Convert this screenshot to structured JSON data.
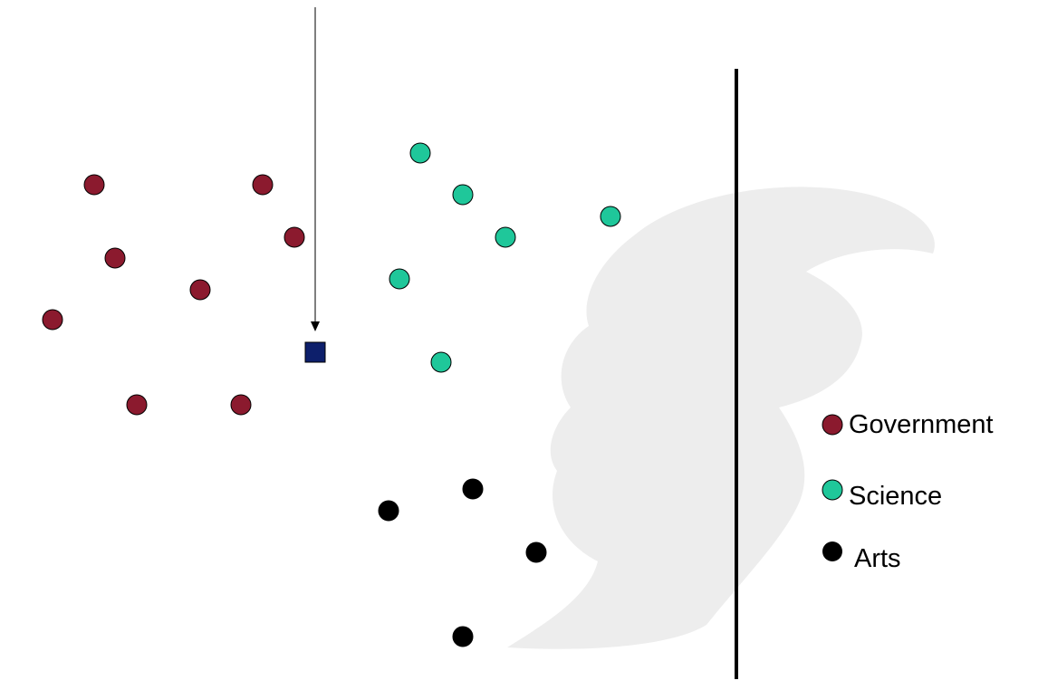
{
  "chart_data": {
    "type": "scatter",
    "colors": {
      "government": "#8B1A2E",
      "science": "#1FC79A",
      "arts": "#000000",
      "query": "#0D1F6B",
      "divider": "#000000",
      "arrow": "#555555",
      "watermark": "#EDEDED"
    },
    "series": [
      {
        "name": "Government",
        "color": "#8B1A2E",
        "points": [
          [
            104,
            204
          ],
          [
            290,
            204
          ],
          [
            325,
            262
          ],
          [
            127,
            285
          ],
          [
            221,
            320
          ],
          [
            58,
            353
          ],
          [
            151,
            447
          ],
          [
            266,
            447
          ]
        ]
      },
      {
        "name": "Science",
        "color": "#1FC79A",
        "points": [
          [
            464,
            169
          ],
          [
            511,
            215
          ],
          [
            674,
            239
          ],
          [
            558,
            262
          ],
          [
            441,
            308
          ],
          [
            487,
            400
          ]
        ]
      },
      {
        "name": "Arts",
        "color": "#000000",
        "points": [
          [
            522,
            540
          ],
          [
            429,
            564
          ],
          [
            592,
            610
          ],
          [
            511,
            703
          ]
        ]
      }
    ],
    "query_point": [
      348,
      389
    ],
    "divider_x": 813,
    "watermark": "trojan-head-logo"
  },
  "legend": {
    "items": [
      {
        "label": "Government",
        "color": "#8B1A2E"
      },
      {
        "label": "Science",
        "color": "#1FC79A"
      },
      {
        "label": "Arts",
        "color": "#000000"
      }
    ]
  }
}
